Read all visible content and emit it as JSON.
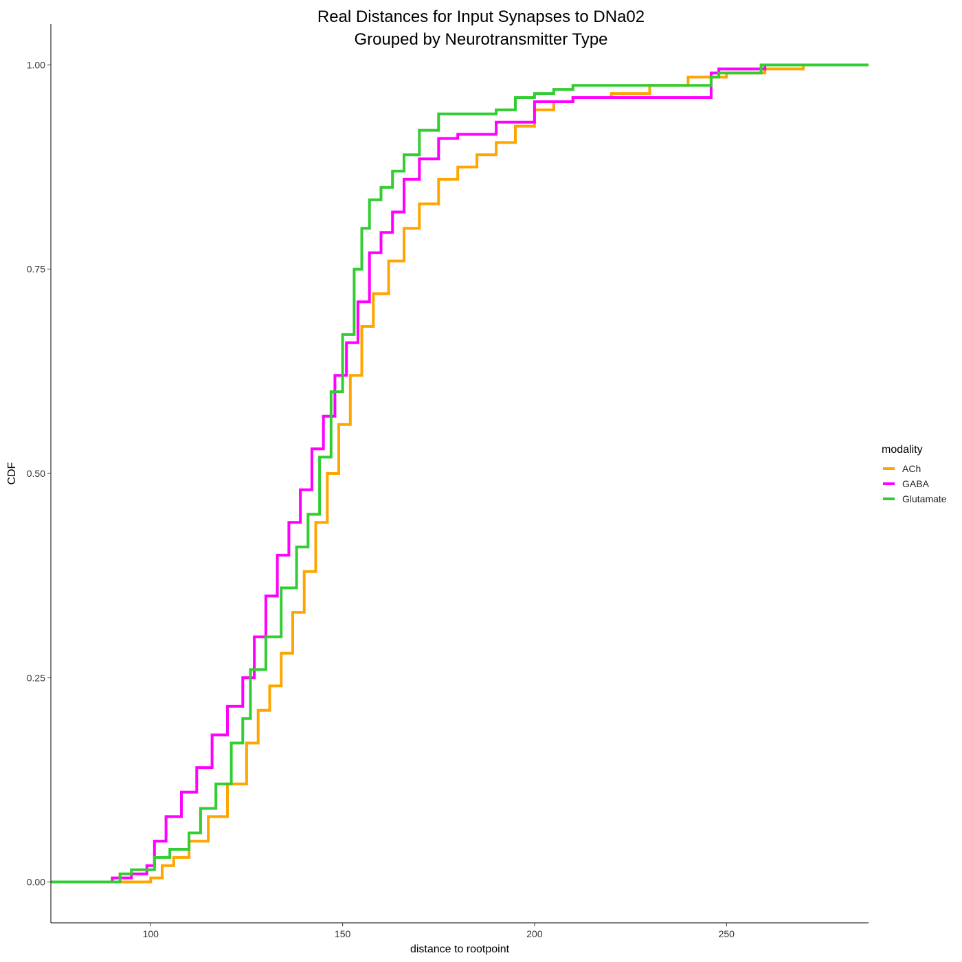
{
  "chart_data": {
    "type": "line",
    "title": [
      "Real Distances for Input Synapses to DNa02",
      "Grouped by Neurotransmitter Type"
    ],
    "xlabel": "distance to rootpoint",
    "ylabel": "CDF",
    "xlim": [
      74,
      287
    ],
    "ylim": [
      -0.05,
      1.05
    ],
    "x_ticks": [
      100,
      150,
      200,
      250
    ],
    "x_tick_labels": [
      "100",
      "150",
      "200",
      "250"
    ],
    "y_ticks": [
      0,
      0.25,
      0.5,
      0.75,
      1
    ],
    "y_tick_labels": [
      "0.00",
      "0.25",
      "0.50",
      "0.75",
      "1.00"
    ],
    "grid": false,
    "step": true,
    "legend": {
      "title": "modality",
      "position": "right"
    },
    "series": [
      {
        "name": "ACh",
        "color": "#FFA500",
        "x": [
          74,
          97,
          100,
          103,
          106,
          110,
          115,
          120,
          125,
          128,
          131,
          134,
          137,
          140,
          143,
          146,
          149,
          152,
          155,
          158,
          162,
          166,
          170,
          175,
          180,
          185,
          190,
          195,
          200,
          205,
          210,
          220,
          230,
          240,
          250,
          260,
          270,
          280,
          287
        ],
        "y": [
          0,
          0,
          0.005,
          0.02,
          0.03,
          0.05,
          0.08,
          0.12,
          0.17,
          0.21,
          0.24,
          0.28,
          0.33,
          0.38,
          0.44,
          0.5,
          0.56,
          0.62,
          0.68,
          0.72,
          0.76,
          0.8,
          0.83,
          0.86,
          0.875,
          0.89,
          0.905,
          0.925,
          0.945,
          0.955,
          0.96,
          0.965,
          0.975,
          0.985,
          0.99,
          0.995,
          1,
          1,
          1
        ]
      },
      {
        "name": "GABA",
        "color": "#FF00FF",
        "x": [
          74,
          82,
          90,
          95,
          99,
          101,
          104,
          108,
          112,
          116,
          120,
          124,
          127,
          130,
          133,
          136,
          139,
          142,
          145,
          148,
          151,
          154,
          157,
          160,
          163,
          166,
          170,
          175,
          180,
          190,
          200,
          210,
          220,
          240,
          246,
          248,
          260,
          272,
          287
        ],
        "y": [
          0,
          0,
          0.005,
          0.01,
          0.02,
          0.05,
          0.08,
          0.11,
          0.14,
          0.18,
          0.215,
          0.25,
          0.3,
          0.35,
          0.4,
          0.44,
          0.48,
          0.53,
          0.57,
          0.62,
          0.66,
          0.71,
          0.77,
          0.795,
          0.82,
          0.86,
          0.885,
          0.91,
          0.915,
          0.93,
          0.955,
          0.96,
          0.96,
          0.96,
          0.99,
          0.995,
          1,
          1,
          1
        ]
      },
      {
        "name": "Glutamate",
        "color": "#32CD32",
        "x": [
          74,
          89,
          92,
          95,
          101,
          105,
          110,
          113,
          117,
          121,
          124,
          126,
          130,
          134,
          138,
          141,
          144,
          147,
          150,
          153,
          155,
          157,
          160,
          163,
          166,
          170,
          175,
          190,
          195,
          200,
          205,
          210,
          240,
          246,
          248,
          259,
          272,
          287
        ],
        "y": [
          0,
          0,
          0.01,
          0.015,
          0.03,
          0.04,
          0.06,
          0.09,
          0.12,
          0.17,
          0.2,
          0.26,
          0.3,
          0.36,
          0.41,
          0.45,
          0.52,
          0.6,
          0.67,
          0.75,
          0.8,
          0.835,
          0.85,
          0.87,
          0.89,
          0.92,
          0.94,
          0.945,
          0.96,
          0.965,
          0.97,
          0.975,
          0.975,
          0.985,
          0.99,
          1,
          1,
          1
        ]
      }
    ]
  }
}
